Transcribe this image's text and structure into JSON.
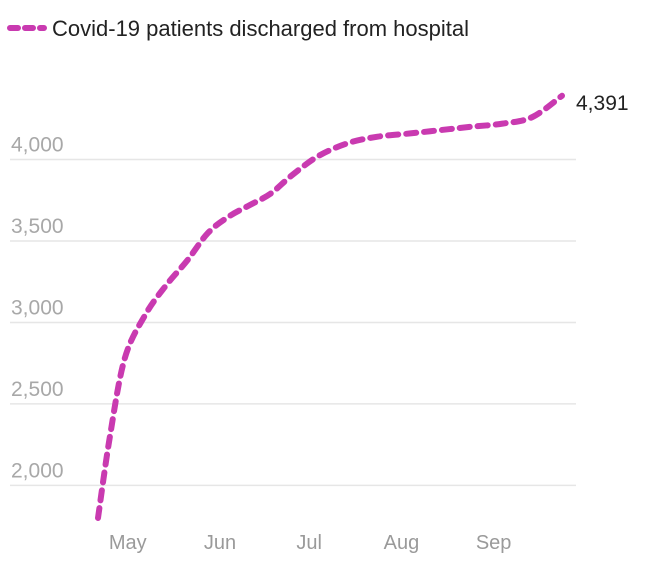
{
  "chart_data": {
    "type": "line",
    "legend": "top-left",
    "grid": true,
    "x": [
      "2020-04-22",
      "2020-04-26",
      "2020-05-01",
      "2020-05-08",
      "2020-05-15",
      "2020-05-22",
      "2020-05-29",
      "2020-06-05",
      "2020-06-12",
      "2020-06-19",
      "2020-06-26",
      "2020-07-05",
      "2020-07-15",
      "2020-07-25",
      "2020-08-05",
      "2020-08-15",
      "2020-08-25",
      "2020-09-05",
      "2020-09-15",
      "2020-09-25"
    ],
    "x_ticks": [
      "May",
      "Jun",
      "Jul",
      "Aug",
      "Sep"
    ],
    "x_tick_dates": [
      "2020-05-01",
      "2020-06-01",
      "2020-07-01",
      "2020-08-01",
      "2020-09-01"
    ],
    "ylim": [
      1800,
      4500
    ],
    "y_ticks": [
      2000,
      2500,
      3000,
      3500,
      4000
    ],
    "y_tick_labels": [
      "2,000",
      "2,500",
      "3,000",
      "3,500",
      "4,000"
    ],
    "series": [
      {
        "name": "Covid-19 patients discharged from hospital",
        "color": "#c93ab0",
        "values": [
          1800,
          2300,
          2780,
          3050,
          3230,
          3380,
          3550,
          3650,
          3720,
          3790,
          3900,
          4020,
          4100,
          4140,
          4160,
          4180,
          4200,
          4220,
          4260,
          4391
        ],
        "end_label": "4,391"
      }
    ]
  }
}
